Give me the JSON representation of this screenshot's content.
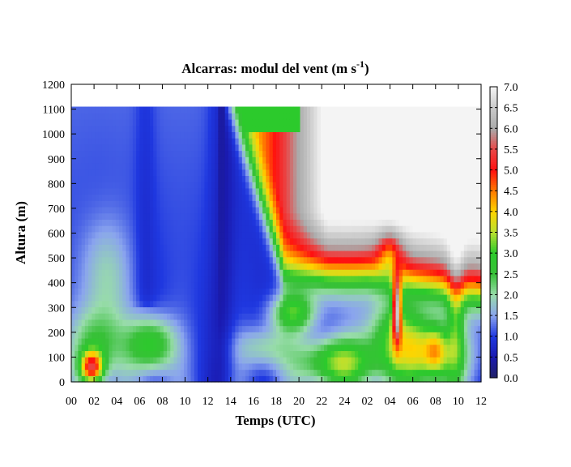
{
  "chart_data": {
    "type": "heatmap",
    "title": "Alcarras: modul del vent (m s",
    "title_sup": "-1",
    "title_end": ")",
    "xlabel": "Temps (UTC)",
    "ylabel": "Altura (m)",
    "x_tick_labels": [
      "00",
      "02",
      "04",
      "06",
      "08",
      "10",
      "12",
      "14",
      "16",
      "18",
      "20",
      "22",
      "24",
      "02",
      "04",
      "06",
      "08",
      "10",
      "12"
    ],
    "xlim_hours": [
      0,
      36
    ],
    "y_ticks": [
      "0",
      "100",
      "200",
      "300",
      "400",
      "500",
      "600",
      "700",
      "800",
      "900",
      "1000",
      "1100",
      "1200"
    ],
    "ylim": [
      0,
      1200
    ],
    "data_top": 1110,
    "colorbar_ticks": [
      "0.0",
      "0.5",
      "1.0",
      "1.5",
      "2.0",
      "2.5",
      "3.0",
      "3.5",
      "4.0",
      "4.5",
      "5.0",
      "5.5",
      "6.0",
      "6.5",
      "7.0"
    ],
    "colorbar_range": [
      0,
      7
    ],
    "colorscale": [
      [
        0.0,
        "#202064"
      ],
      [
        0.5,
        "#1a1ab0"
      ],
      [
        1.0,
        "#1f38e0"
      ],
      [
        1.5,
        "#8aa4ee"
      ],
      [
        2.0,
        "#98dcaa"
      ],
      [
        2.5,
        "#38c038"
      ],
      [
        3.0,
        "#2cca2c"
      ],
      [
        3.5,
        "#b8e030"
      ],
      [
        4.0,
        "#ffd400"
      ],
      [
        4.5,
        "#ff7a00"
      ],
      [
        5.0,
        "#ff1010"
      ],
      [
        5.5,
        "#e84848"
      ],
      [
        6.0,
        "#aaaaaa"
      ],
      [
        6.5,
        "#cacaca"
      ],
      [
        7.0,
        "#f4f4f4"
      ]
    ],
    "wind_field_features": [
      {
        "t": 1.8,
        "z": 60,
        "st": 0.7,
        "sz": 45,
        "a": 3.6
      },
      {
        "t": 2.2,
        "z": 150,
        "st": 1.6,
        "sz": 100,
        "a": 1.4
      },
      {
        "t": 7.0,
        "z": 150,
        "st": 1.5,
        "sz": 80,
        "a": 2.0
      },
      {
        "t": 3.0,
        "z": 420,
        "st": 1.5,
        "sz": 160,
        "a": 0.9
      },
      {
        "t": 19.5,
        "z": 280,
        "st": 1.4,
        "sz": 55,
        "a": 1.9
      },
      {
        "t": 23.5,
        "z": 80,
        "st": 2.5,
        "sz": 70,
        "a": 2.3
      },
      {
        "t": 31.0,
        "z": 110,
        "st": 2.5,
        "sz": 90,
        "a": 2.6
      },
      {
        "t": 32.0,
        "z": 130,
        "st": 0.6,
        "sz": 60,
        "a": 1.0
      },
      {
        "t": 28.5,
        "z": 220,
        "st": 2.0,
        "sz": 80,
        "a": 1.3
      },
      {
        "t": 33.8,
        "z": 300,
        "st": 0.5,
        "sz": 200,
        "a": 1.2
      },
      {
        "t": 17.0,
        "z": 140,
        "st": 1.8,
        "sz": 60,
        "a": 1.0
      }
    ]
  }
}
